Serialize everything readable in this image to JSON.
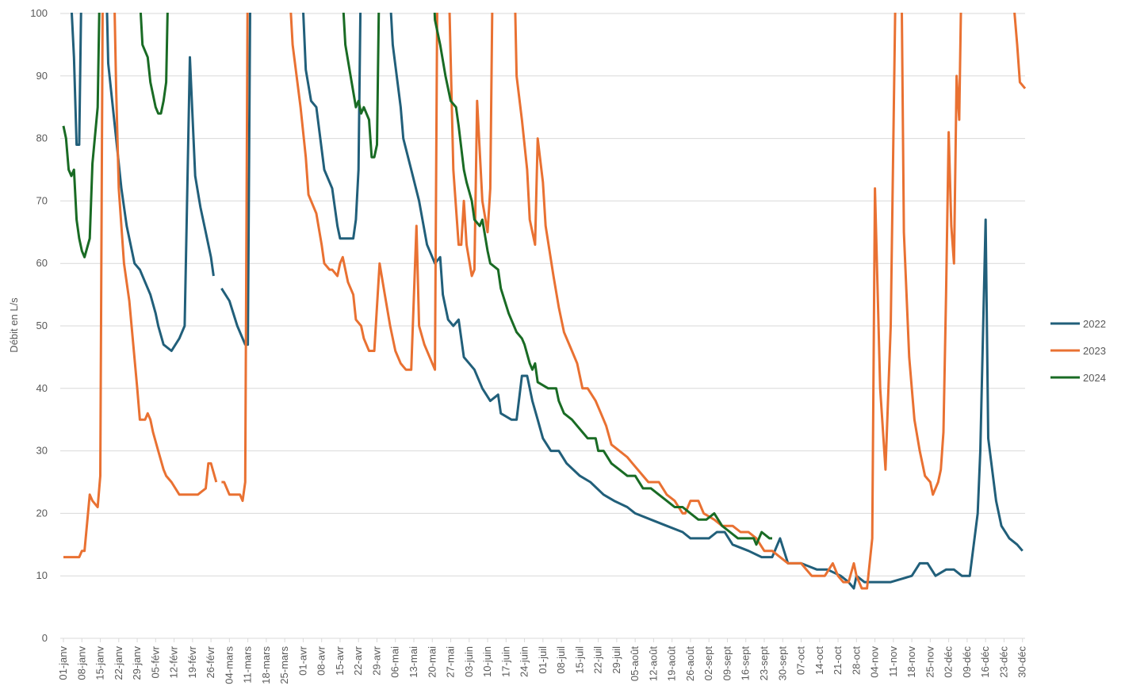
{
  "chart_data": {
    "type": "line",
    "y_label": "Débit en L/s",
    "xlim": [
      1,
      366
    ],
    "ylim": [
      0,
      100
    ],
    "yticks": [
      0,
      10,
      20,
      30,
      40,
      50,
      60,
      70,
      80,
      90,
      100
    ],
    "xticks": [
      {
        "value": 1,
        "label": "01-janv"
      },
      {
        "value": 8,
        "label": "08-janv"
      },
      {
        "value": 15,
        "label": "15-janv"
      },
      {
        "value": 22,
        "label": "22-janv"
      },
      {
        "value": 29,
        "label": "29-janv"
      },
      {
        "value": 36,
        "label": "05-févr"
      },
      {
        "value": 43,
        "label": "12-févr"
      },
      {
        "value": 50,
        "label": "19-févr"
      },
      {
        "value": 57,
        "label": "26-févr"
      },
      {
        "value": 64,
        "label": "04-mars"
      },
      {
        "value": 71,
        "label": "11-mars"
      },
      {
        "value": 78,
        "label": "18-mars"
      },
      {
        "value": 85,
        "label": "25-mars"
      },
      {
        "value": 92,
        "label": "01-avr"
      },
      {
        "value": 99,
        "label": "08-avr"
      },
      {
        "value": 106,
        "label": "15-avr"
      },
      {
        "value": 113,
        "label": "22-avr"
      },
      {
        "value": 120,
        "label": "29-avr"
      },
      {
        "value": 127,
        "label": "06-mai"
      },
      {
        "value": 134,
        "label": "13-mai"
      },
      {
        "value": 141,
        "label": "20-mai"
      },
      {
        "value": 148,
        "label": "27-mai"
      },
      {
        "value": 155,
        "label": "03-juin"
      },
      {
        "value": 162,
        "label": "10-juin"
      },
      {
        "value": 169,
        "label": "17-juin"
      },
      {
        "value": 176,
        "label": "24-juin"
      },
      {
        "value": 183,
        "label": "01-juil"
      },
      {
        "value": 190,
        "label": "08-juil"
      },
      {
        "value": 197,
        "label": "15-juil"
      },
      {
        "value": 204,
        "label": "22-juil"
      },
      {
        "value": 211,
        "label": "29-juil"
      },
      {
        "value": 218,
        "label": "05-août"
      },
      {
        "value": 225,
        "label": "12-août"
      },
      {
        "value": 232,
        "label": "19-août"
      },
      {
        "value": 239,
        "label": "26-août"
      },
      {
        "value": 246,
        "label": "02-sept"
      },
      {
        "value": 253,
        "label": "09-sept"
      },
      {
        "value": 260,
        "label": "16-sept"
      },
      {
        "value": 267,
        "label": "23-sept"
      },
      {
        "value": 274,
        "label": "30-sept"
      },
      {
        "value": 281,
        "label": "07-oct"
      },
      {
        "value": 288,
        "label": "14-oct"
      },
      {
        "value": 295,
        "label": "21-oct"
      },
      {
        "value": 302,
        "label": "28-oct"
      },
      {
        "value": 309,
        "label": "04-nov"
      },
      {
        "value": 316,
        "label": "11-nov"
      },
      {
        "value": 323,
        "label": "18-nov"
      },
      {
        "value": 330,
        "label": "25-nov"
      },
      {
        "value": 337,
        "label": "02-déc"
      },
      {
        "value": 344,
        "label": "09-déc"
      },
      {
        "value": 351,
        "label": "16-déc"
      },
      {
        "value": 358,
        "label": "23-déc"
      },
      {
        "value": 365,
        "label": "30-déc"
      }
    ],
    "grid": true,
    "legend": "right",
    "series": [
      {
        "name": "2022",
        "color": "#215f7a",
        "x": [
          3,
          5,
          6,
          7,
          8,
          17,
          18,
          21,
          23,
          25,
          28,
          30,
          34,
          36,
          37,
          39,
          42,
          45,
          47,
          49,
          51,
          53,
          55,
          57,
          58,
          59,
          61,
          64,
          67,
          70,
          71,
          72,
          91,
          93,
          95,
          97,
          100,
          103,
          105,
          106,
          111,
          112,
          113,
          114,
          124,
          126,
          129,
          130,
          133,
          136,
          139,
          142,
          144,
          145,
          147,
          149,
          151,
          153,
          155,
          157,
          160,
          163,
          166,
          167,
          171,
          173,
          175,
          177,
          179,
          181,
          183,
          186,
          189,
          192,
          197,
          201,
          206,
          210,
          215,
          218,
          224,
          230,
          236,
          239,
          246,
          249,
          252,
          255,
          261,
          266,
          270,
          273,
          276,
          281,
          287,
          291,
          296,
          299,
          301,
          302,
          305,
          311,
          315,
          323,
          326,
          329,
          332,
          336,
          339,
          342,
          345,
          348,
          349,
          351,
          352,
          355,
          357,
          360,
          363,
          365
        ],
        "values": [
          110,
          93,
          79,
          79,
          110,
          110,
          92,
          80,
          72,
          66,
          60,
          59,
          55,
          52,
          50,
          47,
          46,
          48,
          50,
          93,
          74,
          69,
          65,
          61,
          58,
          null,
          56,
          54,
          50,
          47,
          47,
          110,
          110,
          91,
          86,
          85,
          75,
          72,
          66,
          64,
          64,
          67,
          75,
          110,
          110,
          95,
          85,
          80,
          75,
          70,
          63,
          60,
          61,
          55,
          51,
          50,
          51,
          45,
          44,
          43,
          40,
          38,
          39,
          36,
          35,
          35,
          42,
          42,
          38,
          35,
          32,
          30,
          30,
          28,
          26,
          25,
          23,
          22,
          21,
          20,
          19,
          18,
          17,
          16,
          16,
          17,
          17,
          15,
          14,
          13,
          13,
          16,
          12,
          12,
          11,
          11,
          10,
          9,
          8,
          10,
          9,
          9,
          9,
          10,
          12,
          12,
          10,
          11,
          11,
          10,
          10,
          20,
          30,
          67,
          32,
          22,
          18,
          16,
          15,
          14
        ]
      },
      {
        "name": "2023",
        "color": "#e97132",
        "x": [
          1,
          7,
          8,
          9,
          11,
          12,
          14,
          15,
          16,
          20,
          21,
          22,
          24,
          26,
          29,
          30,
          32,
          33,
          34,
          35,
          37,
          39,
          40,
          42,
          45,
          52,
          55,
          56,
          57,
          59,
          60,
          61,
          62,
          64,
          68,
          69,
          70,
          71,
          86,
          88,
          91,
          93,
          94,
          97,
          99,
          100,
          102,
          103,
          105,
          106,
          107,
          109,
          111,
          112,
          114,
          115,
          117,
          119,
          121,
          123,
          125,
          127,
          129,
          131,
          133,
          135,
          136,
          138,
          142,
          143,
          147,
          149,
          151,
          152,
          153,
          154,
          156,
          157,
          158,
          160,
          162,
          163,
          164,
          172,
          173,
          175,
          177,
          178,
          180,
          181,
          183,
          184,
          187,
          189,
          191,
          194,
          196,
          198,
          200,
          203,
          205,
          207,
          209,
          212,
          215,
          217,
          221,
          223,
          227,
          230,
          233,
          236,
          237,
          239,
          242,
          244,
          248,
          251,
          255,
          258,
          261,
          264,
          267,
          270,
          273,
          276,
          281,
          285,
          290,
          293,
          295,
          297,
          299,
          301,
          302,
          304,
          306,
          308,
          309,
          311,
          313,
          315,
          317,
          319,
          320,
          322,
          324,
          326,
          328,
          330,
          331,
          333,
          334,
          335,
          336,
          337,
          338,
          339,
          340,
          341,
          342,
          360,
          363,
          364,
          366
        ],
        "values": [
          13,
          13,
          14,
          14,
          23,
          22,
          21,
          26,
          110,
          110,
          88,
          72,
          60,
          54,
          40,
          35,
          35,
          36,
          35,
          33,
          30,
          27,
          26,
          25,
          23,
          23,
          24,
          28,
          28,
          25,
          null,
          25,
          25,
          23,
          23,
          22,
          25,
          110,
          110,
          95,
          85,
          77,
          71,
          68,
          63,
          60,
          59,
          59,
          58,
          60,
          61,
          57,
          55,
          51,
          50,
          48,
          46,
          46,
          60,
          55,
          50,
          46,
          44,
          43,
          43,
          66,
          50,
          47,
          43,
          110,
          110,
          75,
          63,
          63,
          70,
          63,
          58,
          59,
          86,
          70,
          65,
          72,
          110,
          110,
          90,
          83,
          75,
          67,
          63,
          80,
          73,
          66,
          58,
          53,
          49,
          46,
          44,
          40,
          40,
          38,
          36,
          34,
          31,
          30,
          29,
          28,
          26,
          25,
          25,
          23,
          22,
          20,
          20,
          22,
          22,
          20,
          19,
          18,
          18,
          17,
          17,
          16,
          14,
          14,
          13,
          12,
          12,
          10,
          10,
          12,
          10,
          9,
          9,
          12,
          10,
          8,
          8,
          16,
          72,
          40,
          27,
          50,
          110,
          110,
          65,
          45,
          35,
          30,
          26,
          25,
          23,
          25,
          27,
          33,
          55,
          81,
          66,
          60,
          90,
          83,
          110,
          110,
          95,
          89,
          88
        ]
      },
      {
        "name": "2024",
        "color": "#196b24",
        "x": [
          1,
          2,
          3,
          4,
          5,
          6,
          7,
          8,
          9,
          11,
          12,
          14,
          15,
          29,
          31,
          33,
          34,
          36,
          37,
          38,
          39,
          40,
          41,
          106,
          108,
          110,
          112,
          113,
          114,
          115,
          117,
          118,
          119,
          120,
          121,
          141,
          142,
          144,
          146,
          148,
          150,
          151,
          153,
          154,
          156,
          157,
          159,
          160,
          162,
          163,
          166,
          167,
          170,
          173,
          175,
          176,
          178,
          179,
          180,
          181,
          185,
          188,
          189,
          191,
          194,
          196,
          198,
          200,
          203,
          204,
          206,
          209,
          212,
          215,
          218,
          221,
          224,
          227,
          230,
          233,
          236,
          239,
          242,
          245,
          248,
          251,
          254,
          257,
          260,
          263,
          264,
          266,
          269,
          270
        ],
        "values": [
          82,
          80,
          75,
          74,
          75,
          67,
          64,
          62,
          61,
          64,
          76,
          85,
          110,
          110,
          95,
          93,
          89,
          85,
          84,
          84,
          86,
          89,
          110,
          110,
          95,
          90,
          85,
          86,
          84,
          85,
          83,
          77,
          77,
          79,
          110,
          110,
          99,
          95,
          90,
          86,
          85,
          82,
          75,
          73,
          70,
          67,
          66,
          67,
          62,
          60,
          59,
          56,
          52,
          49,
          48,
          47,
          44,
          43,
          44,
          41,
          40,
          40,
          38,
          36,
          35,
          34,
          33,
          32,
          32,
          30,
          30,
          28,
          27,
          26,
          26,
          24,
          24,
          23,
          22,
          21,
          21,
          20,
          19,
          19,
          20,
          18,
          17,
          16,
          16,
          16,
          15,
          17,
          16,
          16
        ]
      }
    ]
  }
}
